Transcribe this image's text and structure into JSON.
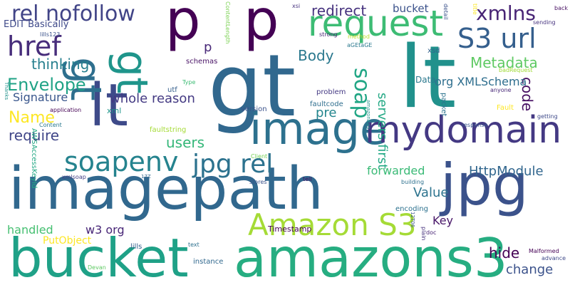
{
  "words": [
    {
      "text": "imagepath",
      "color": "#31688e",
      "rotated": false
    },
    {
      "text": "gt",
      "color": "#31688e",
      "rotated": false
    },
    {
      "text": "lt",
      "color": "#21918c",
      "rotated": false
    },
    {
      "text": "jpg",
      "color": "#3b528b",
      "rotated": false
    },
    {
      "text": "bucket",
      "color": "#1fa187",
      "rotated": false
    },
    {
      "text": "amazons3",
      "color": "#26ad81",
      "rotated": false
    },
    {
      "text": "p",
      "color": "#440154",
      "rotated": false
    },
    {
      "text": "p",
      "color": "#440154",
      "rotated": false
    },
    {
      "text": "lt",
      "color": "#3e4a89",
      "rotated": false
    },
    {
      "text": "gt",
      "color": "#2e6f8e",
      "rotated": true
    },
    {
      "text": "gt",
      "color": "#1f958b",
      "rotated": true
    },
    {
      "text": "image",
      "color": "#2d718e",
      "rotated": false
    },
    {
      "text": "mydomain",
      "color": "#443983",
      "rotated": false
    },
    {
      "text": "Amazon S3",
      "color": "#a5db36",
      "rotated": false
    },
    {
      "text": "request",
      "color": "#3dbc74",
      "rotated": false
    },
    {
      "text": "S3 url",
      "color": "#355f8d",
      "rotated": false
    },
    {
      "text": "soapenv",
      "color": "#25838e",
      "rotated": false
    },
    {
      "text": "jpg rel",
      "color": "#2c728e",
      "rotated": false
    },
    {
      "text": "href",
      "color": "#472d7b",
      "rotated": false
    },
    {
      "text": "rel nofollow",
      "color": "#414487",
      "rotated": false
    },
    {
      "text": "soap",
      "color": "#21a685",
      "rotated": true
    },
    {
      "text": "xmlns",
      "color": "#482475",
      "rotated": false
    },
    {
      "text": "redirect",
      "color": "#46327e",
      "rotated": false
    },
    {
      "text": "bucket",
      "color": "#3b528b",
      "rotated": false
    },
    {
      "text": "Envelope",
      "color": "#20a386",
      "rotated": false
    },
    {
      "text": "thinking",
      "color": "#277f8e",
      "rotated": false
    },
    {
      "text": "Body",
      "color": "#2a788e",
      "rotated": false
    },
    {
      "text": "Metadata",
      "color": "#5ec962",
      "rotated": false
    },
    {
      "text": "Name",
      "color": "#fde725",
      "rotated": false
    },
    {
      "text": "require",
      "color": "#404688",
      "rotated": false
    },
    {
      "text": "whole reason",
      "color": "#443a83",
      "rotated": false
    },
    {
      "text": "pre",
      "color": "#24868e",
      "rotated": false
    },
    {
      "text": "code",
      "color": "#471063",
      "rotated": true
    },
    {
      "text": "servers first",
      "color": "#22a884",
      "rotated": true
    },
    {
      "text": "org XMLSchema",
      "color": "#2e6e8e",
      "rotated": false
    },
    {
      "text": "users",
      "color": "#35b779",
      "rotated": false
    },
    {
      "text": "forwarded",
      "color": "#3aba76",
      "rotated": false
    },
    {
      "text": "HttpModule",
      "color": "#31668e",
      "rotated": false
    },
    {
      "text": "Value",
      "color": "#2c738e",
      "rotated": false
    },
    {
      "text": "handled",
      "color": "#44bf70",
      "rotated": false
    },
    {
      "text": "w3 org",
      "color": "#482677",
      "rotated": false
    },
    {
      "text": "hide",
      "color": "#440154",
      "rotated": false
    },
    {
      "text": "change",
      "color": "#3b528b",
      "rotated": false
    },
    {
      "text": "Key",
      "color": "#481668",
      "rotated": false
    },
    {
      "text": "EDIT Basically",
      "color": "#3e4989",
      "rotated": false
    },
    {
      "text": "Signature",
      "color": "#39568c",
      "rotated": false
    },
    {
      "text": "Data",
      "color": "#2a788e",
      "rotated": false
    },
    {
      "text": "p",
      "color": "#482878",
      "rotated": false
    },
    {
      "text": "PutObject",
      "color": "#fde725",
      "rotated": false
    },
    {
      "text": "Timestamp",
      "color": "#440154",
      "rotated": false
    },
    {
      "text": "ContentLength",
      "color": "#7ad151",
      "rotated": true
    },
    {
      "text": "lills123",
      "color": "#3b528b",
      "rotated": false
    },
    {
      "text": "xsi",
      "color": "#46327e",
      "rotated": false
    },
    {
      "text": "strong",
      "color": "#482475",
      "rotated": false
    },
    {
      "text": "method",
      "color": "#bddf26",
      "rotated": false
    },
    {
      "text": "aGEtaGE",
      "color": "#2a788e",
      "rotated": false
    },
    {
      "text": "detail",
      "color": "#3b528b",
      "rotated": true
    },
    {
      "text": "title",
      "color": "#fde725",
      "rotated": true
    },
    {
      "text": "back",
      "color": "#471063",
      "rotated": false
    },
    {
      "text": "sending",
      "color": "#46337f",
      "rotated": false
    },
    {
      "text": "badRequest",
      "color": "#a0da39",
      "rotated": false
    },
    {
      "text": "xsd",
      "color": "#33638d",
      "rotated": false
    },
    {
      "text": "schemas",
      "color": "#471164",
      "rotated": false
    },
    {
      "text": "utf",
      "color": "#355f8d",
      "rotated": false
    },
    {
      "text": "Type",
      "color": "#3dbc74",
      "rotated": false
    },
    {
      "text": "xml",
      "color": "#1f958b",
      "rotated": false
    },
    {
      "text": "faultstring",
      "color": "#a5db36",
      "rotated": false
    },
    {
      "text": "version",
      "color": "#3b528b",
      "rotated": false
    },
    {
      "text": "faultcode",
      "color": "#2e6e8e",
      "rotated": false
    },
    {
      "text": "problem",
      "color": "#443983",
      "rotated": false
    },
    {
      "text": "anyone",
      "color": "#482878",
      "rotated": false
    },
    {
      "text": "Fault",
      "color": "#fde725",
      "rotated": false
    },
    {
      "text": "getting",
      "color": "#3e4a89",
      "rotated": false
    },
    {
      "text": "response",
      "color": "#39568c",
      "rotated": false
    },
    {
      "text": "packet",
      "color": "#2c738e",
      "rotated": true
    },
    {
      "text": "amazonaws",
      "color": "#21918c",
      "rotated": true
    },
    {
      "text": "application",
      "color": "#440154",
      "rotated": false
    },
    {
      "text": "Thanks",
      "color": "#21918c",
      "rotated": true
    },
    {
      "text": "Content",
      "color": "#2a788e",
      "rotated": false
    },
    {
      "text": "AWSAccessKeyId",
      "color": "#22a884",
      "rotated": true
    },
    {
      "text": "Client",
      "color": "#75d054",
      "rotated": false
    },
    {
      "text": "xmlsoap",
      "color": "#433e85",
      "rotated": false
    },
    {
      "text": "17Z",
      "color": "#31688e",
      "rotated": false
    },
    {
      "text": "tell",
      "color": "#471063",
      "rotated": false
    },
    {
      "text": "stores",
      "color": "#3b528b",
      "rotated": false
    },
    {
      "text": "building",
      "color": "#2d708e",
      "rotated": false
    },
    {
      "text": "encoding",
      "color": "#2c718e",
      "rotated": false
    },
    {
      "text": "12T06",
      "color": "#3b528b",
      "rotated": true
    },
    {
      "text": "plain",
      "color": "#46327e",
      "rotated": true
    },
    {
      "text": "doc",
      "color": "#482475",
      "rotated": false
    },
    {
      "text": "text",
      "color": "#2d708e",
      "rotated": false
    },
    {
      "text": "lills",
      "color": "#35608d",
      "rotated": false
    },
    {
      "text": "instance",
      "color": "#31688e",
      "rotated": false
    },
    {
      "text": "Malformed",
      "color": "#440154",
      "rotated": false
    },
    {
      "text": "advance",
      "color": "#3e4989",
      "rotated": false
    },
    {
      "text": "Devan",
      "color": "#5ec962",
      "rotated": false
    }
  ]
}
